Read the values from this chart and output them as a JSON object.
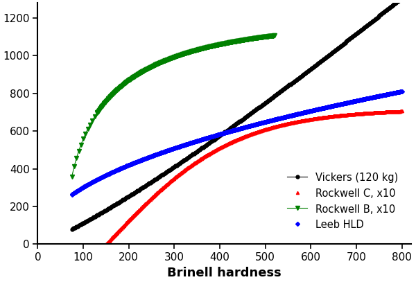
{
  "title": "",
  "xlabel": "Brinell hardness",
  "ylabel": "",
  "xlim": [
    0,
    820
  ],
  "ylim": [
    0,
    1280
  ],
  "xticks": [
    0,
    100,
    200,
    300,
    400,
    500,
    600,
    700,
    800
  ],
  "yticks": [
    0,
    200,
    400,
    600,
    800,
    1000,
    1200
  ],
  "legend_order": [
    "vickers",
    "rockwell_c",
    "rockwell_b",
    "leeb"
  ],
  "legend": {
    "loc": "lower right",
    "fontsize": 10.5
  },
  "tick_fontsize": 11,
  "label_fontsize": 13,
  "fig_bg": "#ffffff"
}
